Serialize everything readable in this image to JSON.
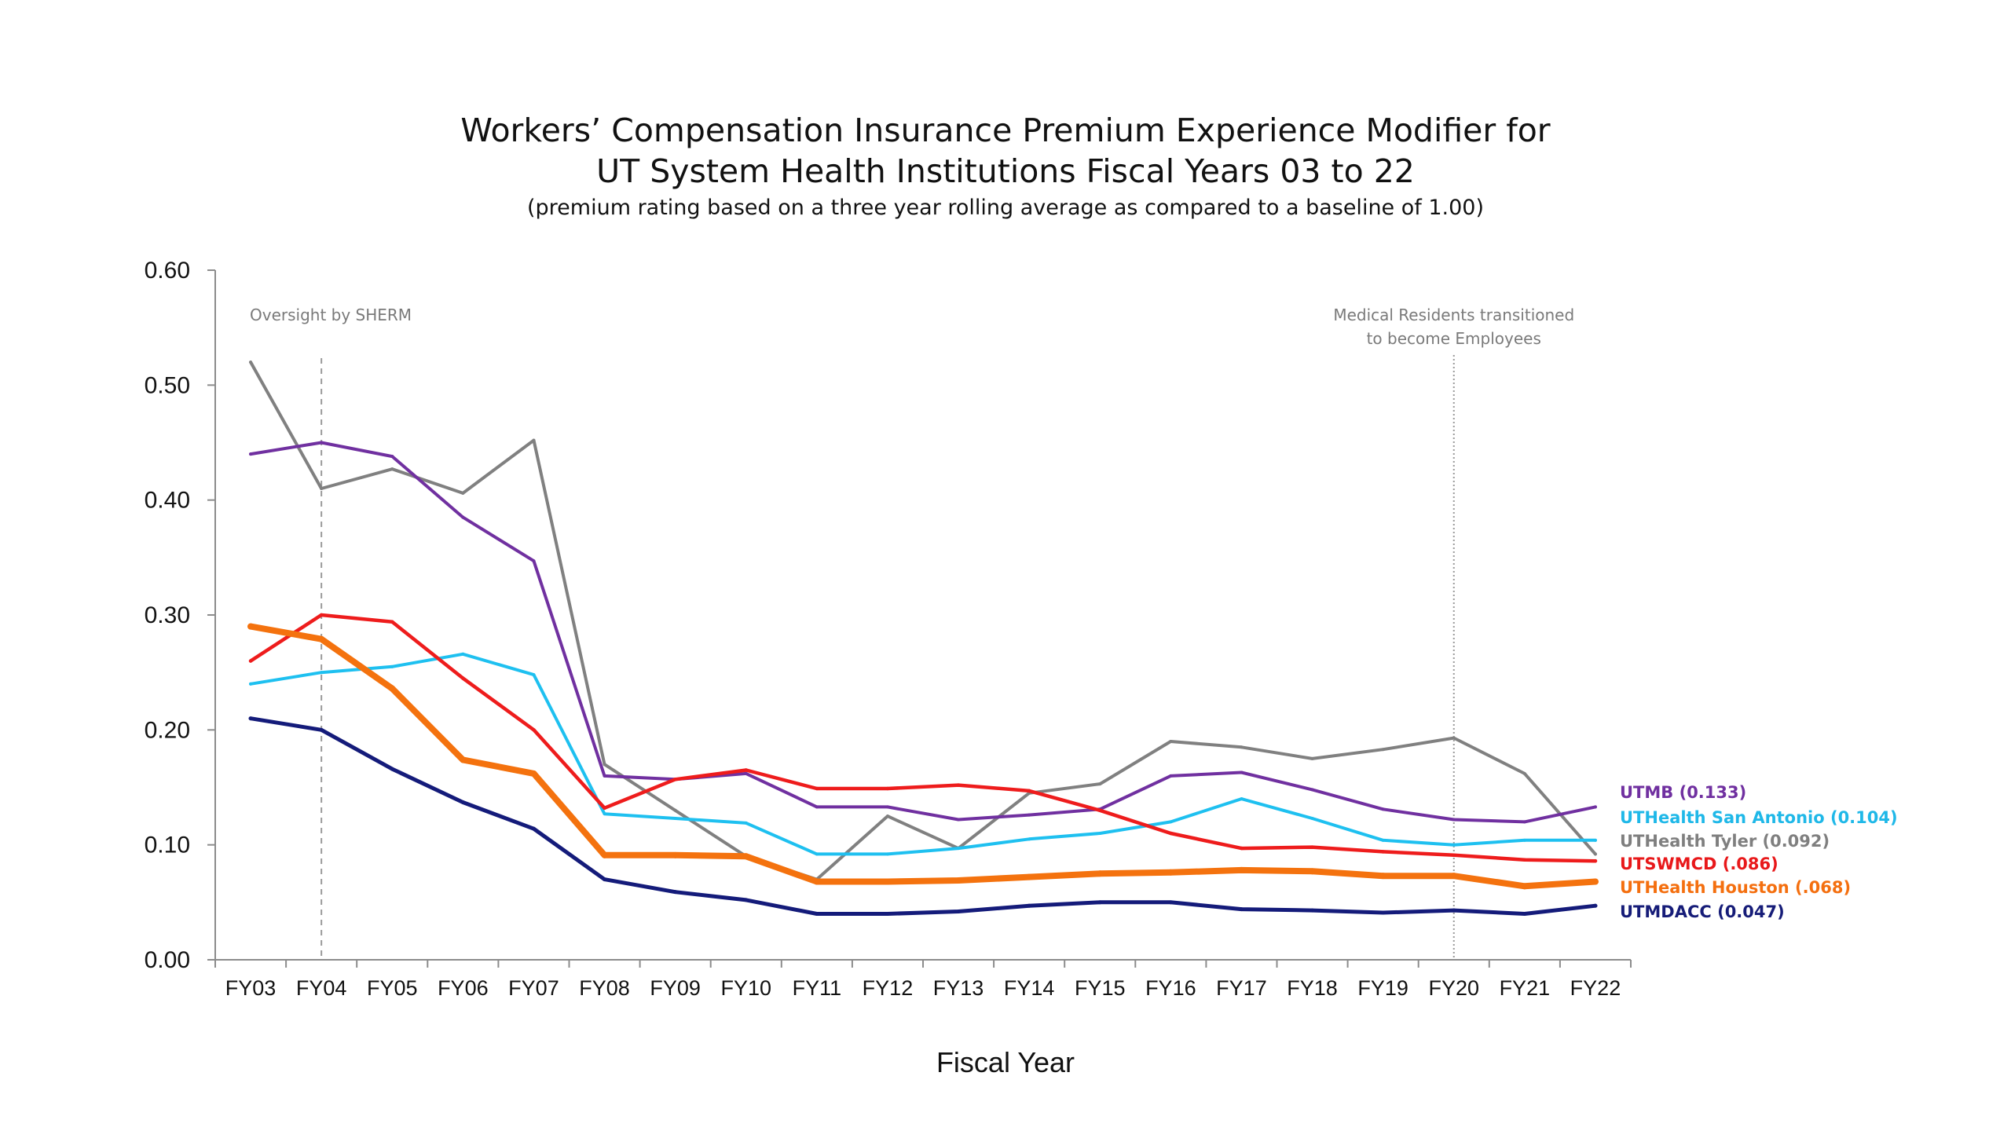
{
  "chart_data": {
    "type": "line",
    "title_line1": "Workers’ Compensation Insurance Premium Experience Modifier for",
    "title_line2": "UT System Health Institutions Fiscal Years 03 to 22",
    "subtitle": "(premium rating based on a three year rolling average as compared to a baseline of 1.00)",
    "xlabel": "Fiscal Year",
    "ylabel": "",
    "ylim": [
      0,
      0.6
    ],
    "yticks": [
      "0.00",
      "0.10",
      "0.20",
      "0.30",
      "0.40",
      "0.50",
      "0.60"
    ],
    "categories": [
      "FY03",
      "FY04",
      "FY05",
      "FY06",
      "FY07",
      "FY08",
      "FY09",
      "FY10",
      "FY11",
      "FY12",
      "FY13",
      "FY14",
      "FY15",
      "FY16",
      "FY17",
      "FY18",
      "FY19",
      "FY20",
      "FY21",
      "FY22"
    ],
    "annotations": [
      {
        "category": "FY04",
        "lines": [
          "Oversight by  SHERM"
        ],
        "style": "dashed"
      },
      {
        "category": "FY20",
        "lines": [
          "Medical Residents transitioned",
          "to become Employees"
        ],
        "style": "dotted"
      }
    ],
    "series": [
      {
        "name": "UTHealth Tyler",
        "end_label": "UTHealth Tyler (0.092)",
        "color": "#808080",
        "label_color": "#7f7f7f",
        "width": 4,
        "values": [
          0.52,
          0.41,
          0.427,
          0.406,
          0.452,
          0.17,
          0.13,
          0.09,
          0.07,
          0.125,
          0.097,
          0.145,
          0.153,
          0.19,
          0.185,
          0.175,
          0.183,
          0.193,
          0.162,
          0.092
        ]
      },
      {
        "name": "UTMB",
        "end_label": "UTMB (0.133)",
        "color": "#7030A0",
        "label_color": "#7030A0",
        "width": 4,
        "values": [
          0.44,
          0.45,
          0.438,
          0.385,
          0.347,
          0.16,
          0.157,
          0.162,
          0.133,
          0.133,
          0.122,
          0.126,
          0.131,
          0.16,
          0.163,
          0.148,
          0.131,
          0.122,
          0.12,
          0.133
        ]
      },
      {
        "name": "UTHealth San Antonio",
        "end_label": "UTHealth San Antonio (0.104)",
        "color": "#1EC0F0",
        "label_color": "#1FB8E8",
        "width": 4,
        "values": [
          0.24,
          0.25,
          0.255,
          0.266,
          0.248,
          0.127,
          0.123,
          0.119,
          0.092,
          0.092,
          0.097,
          0.105,
          0.11,
          0.12,
          0.14,
          0.123,
          0.104,
          0.1,
          0.104,
          0.104
        ]
      },
      {
        "name": "UTSWMCD",
        "end_label": "UTSWMCD (.086)",
        "color": "#EE1C1C",
        "label_color": "#E8181A",
        "width": 4.5,
        "values": [
          0.26,
          0.3,
          0.294,
          0.245,
          0.2,
          0.132,
          0.157,
          0.165,
          0.149,
          0.149,
          0.152,
          0.147,
          0.13,
          0.11,
          0.097,
          0.098,
          0.094,
          0.091,
          0.087,
          0.086
        ]
      },
      {
        "name": "UTHealth Houston",
        "end_label": "UTHealth Houston (.068)",
        "color": "#F4720E",
        "label_color": "#F46F0F",
        "width": 8,
        "values": [
          0.29,
          0.279,
          0.236,
          0.174,
          0.162,
          0.091,
          0.091,
          0.09,
          0.068,
          0.068,
          0.069,
          0.072,
          0.075,
          0.076,
          0.078,
          0.077,
          0.073,
          0.073,
          0.064,
          0.068
        ]
      },
      {
        "name": "UTMDACC",
        "end_label": "UTMDACC (0.047)",
        "color": "#141B7A",
        "label_color": "#161C78",
        "width": 5,
        "values": [
          0.21,
          0.2,
          0.166,
          0.137,
          0.114,
          0.07,
          0.059,
          0.052,
          0.04,
          0.04,
          0.042,
          0.047,
          0.05,
          0.05,
          0.044,
          0.043,
          0.041,
          0.043,
          0.04,
          0.047
        ]
      }
    ]
  }
}
